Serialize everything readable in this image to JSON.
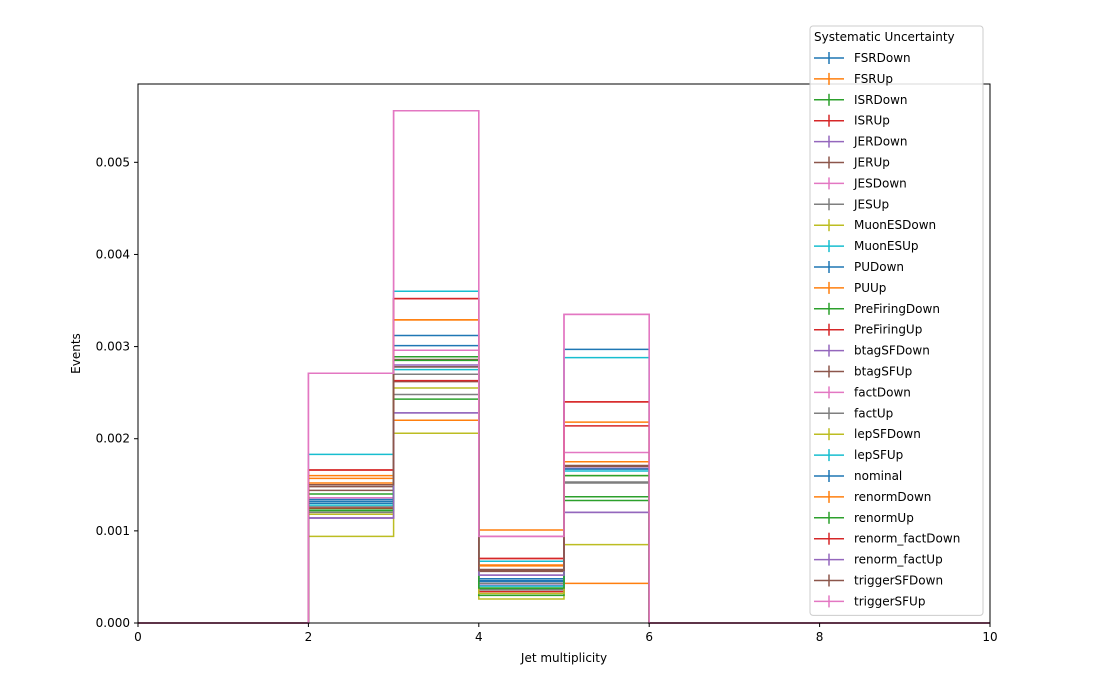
{
  "chart_data": {
    "type": "line",
    "subtype": "step-histogram",
    "title": "",
    "xlabel": "Jet multiplicity",
    "ylabel": "Events",
    "xlim": [
      0,
      10
    ],
    "ylim": [
      0,
      0.00585
    ],
    "xticks": [
      0,
      2,
      4,
      6,
      8,
      10
    ],
    "xtick_labels": [
      "0",
      "2",
      "4",
      "6",
      "8",
      "10"
    ],
    "yticks": [
      0,
      0.001,
      0.002,
      0.003,
      0.004,
      0.005
    ],
    "ytick_labels": [
      "0.000",
      "0.001",
      "0.002",
      "0.003",
      "0.004",
      "0.005"
    ],
    "bin_edges": [
      0,
      1,
      2,
      3,
      4,
      5,
      6,
      7,
      8,
      9,
      10
    ],
    "grid": false,
    "legend": {
      "title": "Systematic Uncertainty",
      "placement": "top-right"
    },
    "series": [
      {
        "name": "FSRDown",
        "color": "#1f77b4",
        "values": [
          0,
          0,
          0.0013,
          0.00312,
          0.00046,
          0.00168,
          0,
          0,
          0,
          0
        ]
      },
      {
        "name": "FSRUp",
        "color": "#ff7f0e",
        "values": [
          0,
          0,
          0.00152,
          0.0022,
          0.00063,
          0.00043,
          0,
          0,
          0,
          0
        ]
      },
      {
        "name": "ISRDown",
        "color": "#2ca02c",
        "values": [
          0,
          0,
          0.0014,
          0.00243,
          0.00037,
          0.00133,
          0,
          0,
          0,
          0
        ]
      },
      {
        "name": "ISRUp",
        "color": "#d62728",
        "values": [
          0,
          0,
          0.00166,
          0.00352,
          0.0007,
          0.0024,
          0,
          0,
          0,
          0
        ]
      },
      {
        "name": "JERDown",
        "color": "#9467bd",
        "values": [
          0,
          0,
          0.00114,
          0.00228,
          0.00052,
          0.0012,
          0,
          0,
          0,
          0
        ]
      },
      {
        "name": "JERUp",
        "color": "#8c564b",
        "values": [
          0,
          0,
          0.00148,
          0.00262,
          0.00058,
          0.00168,
          0,
          0,
          0,
          0
        ]
      },
      {
        "name": "JESDown",
        "color": "#e377c2",
        "values": [
          0,
          0,
          0.00136,
          0.00296,
          0.00094,
          0.00185,
          0,
          0,
          0,
          0
        ]
      },
      {
        "name": "JESUp",
        "color": "#7f7f7f",
        "values": [
          0,
          0,
          0.0012,
          0.00248,
          0.00043,
          0.00153,
          0,
          0,
          0,
          0
        ]
      },
      {
        "name": "MuonESDown",
        "color": "#bcbd22",
        "values": [
          0,
          0,
          0.00094,
          0.00206,
          0.00026,
          0.00085,
          0,
          0,
          0,
          0
        ]
      },
      {
        "name": "MuonESUp",
        "color": "#17becf",
        "values": [
          0,
          0,
          0.00183,
          0.0036,
          0.00067,
          0.00288,
          0,
          0,
          0,
          0
        ]
      },
      {
        "name": "PUDown",
        "color": "#1f77b4",
        "values": [
          0,
          0,
          0.00134,
          0.00301,
          0.00048,
          0.00297,
          0,
          0,
          0,
          0
        ]
      },
      {
        "name": "PUUp",
        "color": "#ff7f0e",
        "values": [
          0,
          0,
          0.0016,
          0.00329,
          0.00101,
          0.00218,
          0,
          0,
          0,
          0
        ]
      },
      {
        "name": "PreFiringDown",
        "color": "#2ca02c",
        "values": [
          0,
          0,
          0.00124,
          0.00289,
          0.0003,
          0.00137,
          0,
          0,
          0,
          0
        ]
      },
      {
        "name": "PreFiringUp",
        "color": "#d62728",
        "values": [
          0,
          0,
          0.00125,
          0.00263,
          0.00034,
          0.00214,
          0,
          0,
          0,
          0
        ]
      },
      {
        "name": "btagSFDown",
        "color": "#9467bd",
        "values": [
          0,
          0,
          0.00114,
          0.0028,
          0.00041,
          0.00168,
          0,
          0,
          0,
          0
        ]
      },
      {
        "name": "btagSFUp",
        "color": "#8c564b",
        "values": [
          0,
          0,
          0.00144,
          0.00286,
          0.00056,
          0.0017,
          0,
          0,
          0,
          0
        ]
      },
      {
        "name": "factDown",
        "color": "#e377c2",
        "values": [
          0,
          0,
          0.00271,
          0.00556,
          0.00094,
          0.00335,
          0,
          0,
          0,
          0
        ]
      },
      {
        "name": "factUp",
        "color": "#7f7f7f",
        "values": [
          0,
          0,
          0.00126,
          0.0027,
          0.00036,
          0.00152,
          0,
          0,
          0,
          0
        ]
      },
      {
        "name": "lepSFDown",
        "color": "#bcbd22",
        "values": [
          0,
          0,
          0.00118,
          0.00255,
          0.00032,
          0.0016,
          0,
          0,
          0,
          0
        ]
      },
      {
        "name": "lepSFUp",
        "color": "#17becf",
        "values": [
          0,
          0,
          0.00128,
          0.00275,
          0.0004,
          0.00165,
          0,
          0,
          0,
          0
        ]
      },
      {
        "name": "nominal",
        "color": "#1f77b4",
        "values": [
          0,
          0,
          0.00132,
          0.00278,
          0.00045,
          0.00167,
          0,
          0,
          0,
          0
        ]
      },
      {
        "name": "renormDown",
        "color": "#ff7f0e",
        "values": [
          0,
          0,
          0.00157,
          0.00329,
          0.00062,
          0.00175,
          0,
          0,
          0,
          0
        ]
      },
      {
        "name": "renormUp",
        "color": "#2ca02c",
        "values": [
          0,
          0,
          0.00122,
          0.00285,
          0.00038,
          0.0016,
          0,
          0,
          0,
          0
        ]
      },
      {
        "name": "renorm_factDown",
        "color": "#d62728",
        "values": [
          0,
          0,
          0.00166,
          0.00352,
          0.0007,
          0.0024,
          0,
          0,
          0,
          0
        ]
      },
      {
        "name": "renorm_factUp",
        "color": "#9467bd",
        "values": [
          0,
          0,
          0.00114,
          0.00228,
          0.00052,
          0.0012,
          0,
          0,
          0,
          0
        ]
      },
      {
        "name": "triggerSFDown",
        "color": "#8c564b",
        "values": [
          0,
          0,
          0.0015,
          0.00278,
          0.00057,
          0.00171,
          0,
          0,
          0,
          0
        ]
      },
      {
        "name": "triggerSFUp",
        "color": "#e377c2",
        "values": [
          0,
          0,
          0.00271,
          0.00556,
          0.00094,
          0.00335,
          0,
          0,
          0,
          0
        ]
      }
    ]
  }
}
